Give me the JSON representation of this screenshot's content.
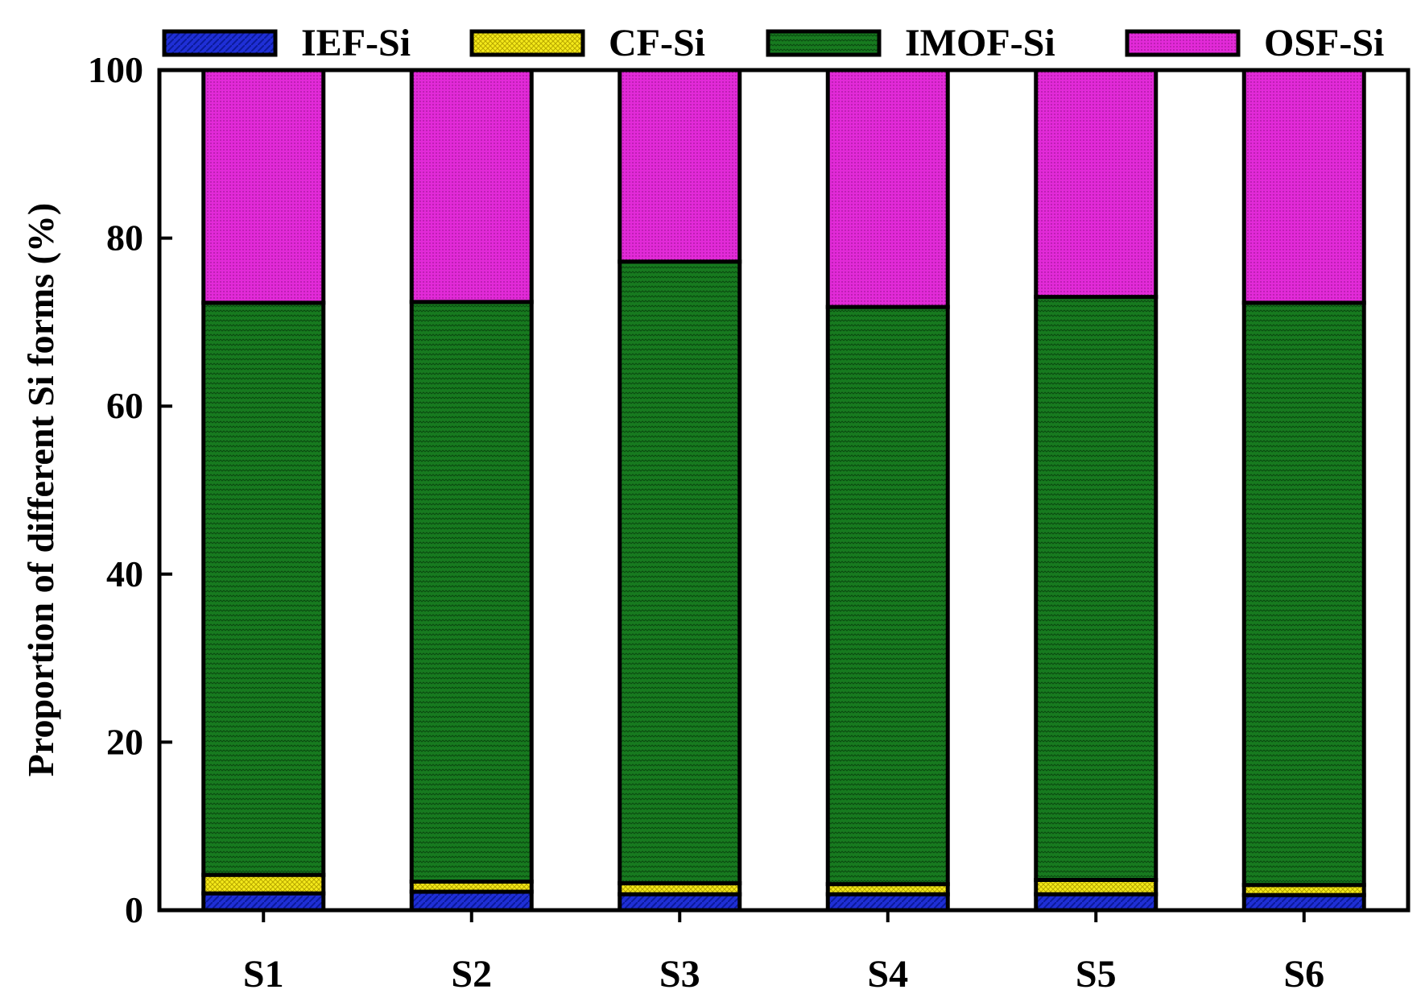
{
  "chart_data": {
    "type": "bar",
    "stacked": true,
    "ylabel": "Proportion of different Si forms (%)",
    "xlabel": "",
    "ylim": [
      0,
      100
    ],
    "yticks": [
      "0",
      "20",
      "40",
      "60",
      "80",
      "100"
    ],
    "ytick_values": [
      0,
      20,
      40,
      60,
      80,
      100
    ],
    "categories": [
      "S1",
      "S2",
      "S3",
      "S4",
      "S5",
      "S6"
    ],
    "grid": false,
    "legend_position": "top",
    "series": [
      {
        "name": "IEF-Si",
        "color": "#1f2fd6",
        "values": [
          2.0,
          2.2,
          1.9,
          1.9,
          1.9,
          1.8
        ]
      },
      {
        "name": "CF-Si",
        "color": "#f5ea1a",
        "values": [
          2.2,
          1.2,
          1.3,
          1.2,
          1.7,
          1.2
        ]
      },
      {
        "name": "IMOF-Si",
        "color": "#177a1f",
        "values": [
          68.1,
          69.0,
          74.0,
          68.7,
          69.4,
          69.3
        ]
      },
      {
        "name": "OSF-Si",
        "color": "#e22ad8",
        "values": [
          27.7,
          27.6,
          22.8,
          28.2,
          27.0,
          27.7
        ]
      }
    ]
  }
}
